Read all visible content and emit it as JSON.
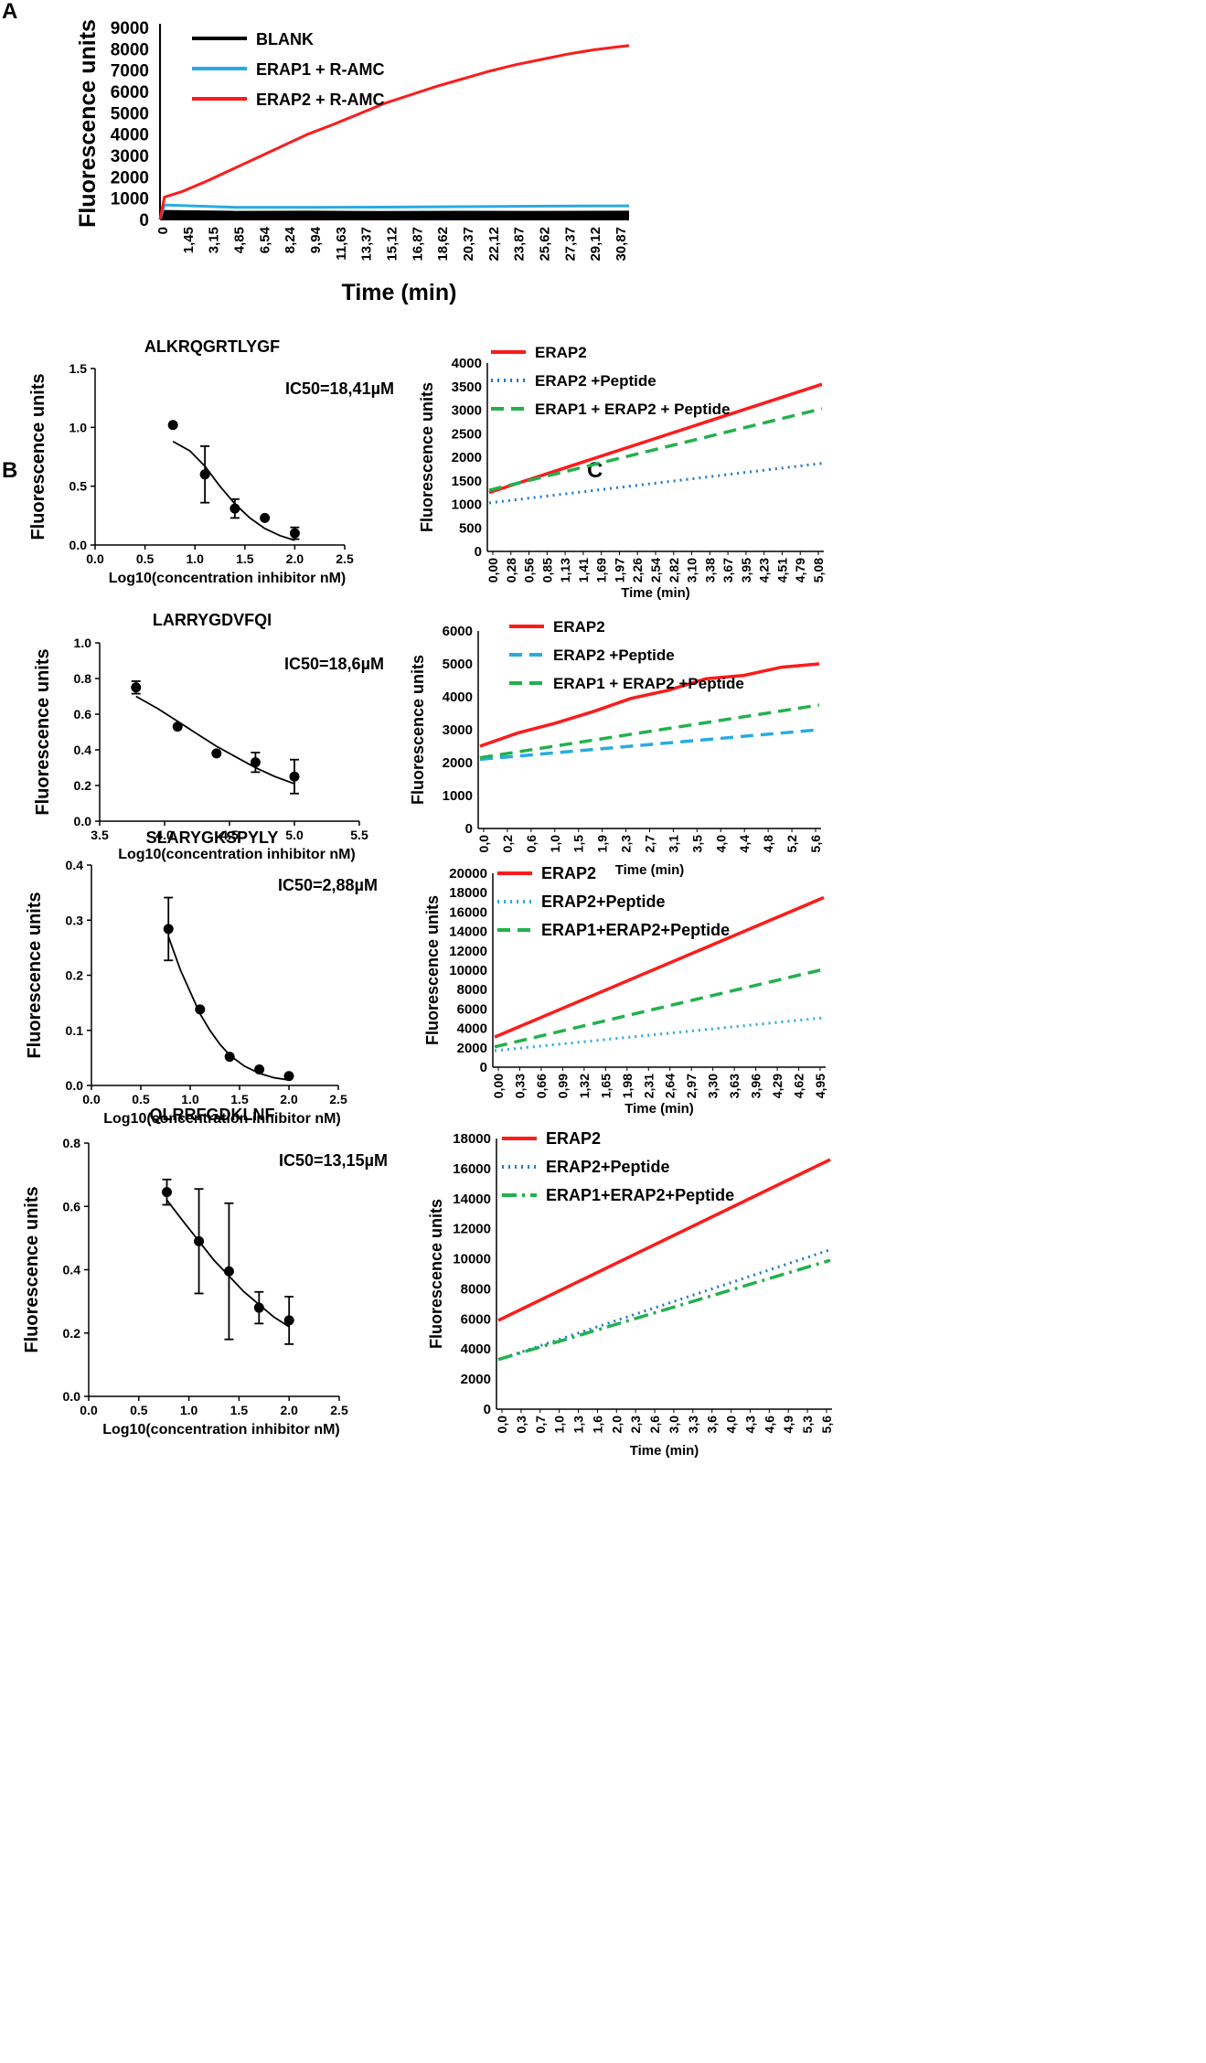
{
  "figure": {
    "panel_labels": [
      "A",
      "B",
      "C"
    ]
  },
  "chart_data": [
    {
      "id": "A",
      "type": "line",
      "title": "",
      "xlabel": "Time (min)",
      "ylabel": "Fluorescence units",
      "ylim": [
        0,
        9000
      ],
      "yticks": [
        "0",
        "1000",
        "2000",
        "3000",
        "4000",
        "5000",
        "6000",
        "7000",
        "8000",
        "9000"
      ],
      "xticks": [
        "0",
        "1,45",
        "3,15",
        "4,85",
        "6,54",
        "8,24",
        "9,94",
        "11,63",
        "13,37",
        "15,12",
        "16,87",
        "18,62",
        "20,37",
        "22,12",
        "23,87",
        "25,62",
        "27,37",
        "29,12",
        "30,87"
      ],
      "xlim": [
        0,
        31.5
      ],
      "legend_position": "top-left",
      "series": [
        {
          "name": "BLANK",
          "color": "#000000",
          "dash": "solid",
          "x": [
            0,
            0.3,
            5,
            10,
            15,
            20,
            25,
            31.5
          ],
          "y": [
            0,
            380,
            340,
            350,
            330,
            345,
            340,
            350
          ]
        },
        {
          "name": "ERAP1 + R-AMC",
          "color": "#29abe2",
          "dash": "solid",
          "x": [
            0,
            0.3,
            5,
            10,
            15,
            20,
            25,
            31.5
          ],
          "y": [
            0,
            680,
            570,
            570,
            580,
            600,
            620,
            640
          ]
        },
        {
          "name": "ERAP2 + R-AMC",
          "color": "#ff1a1a",
          "dash": "solid",
          "x": [
            0,
            0.3,
            1.45,
            3.15,
            4.85,
            6.54,
            8.24,
            9.94,
            11.63,
            13.37,
            15.12,
            16.87,
            18.62,
            20.37,
            22.12,
            23.87,
            25.62,
            27.37,
            29.12,
            30.87,
            31.5
          ],
          "y": [
            0,
            1050,
            1300,
            1800,
            2350,
            2900,
            3450,
            4000,
            4450,
            4950,
            5450,
            5850,
            6250,
            6600,
            6950,
            7250,
            7500,
            7750,
            7950,
            8100,
            8150
          ]
        }
      ]
    },
    {
      "id": "B1",
      "type": "scatter",
      "title": "ALKRQGRTLYGF",
      "annotation": "IC50=18,41µM",
      "xlabel": "Log10(concentration inhibitor nM)",
      "ylabel": "Fluorescence units",
      "xlim": [
        0,
        2.5
      ],
      "ylim": [
        0,
        1.5
      ],
      "xticks": [
        "0.0",
        "0.5",
        "1.0",
        "1.5",
        "2.0",
        "2.5"
      ],
      "yticks": [
        "0.0",
        "0.5",
        "1.0",
        "1.5"
      ],
      "points": [
        {
          "x": 0.78,
          "y": 1.02,
          "err": 0
        },
        {
          "x": 1.1,
          "y": 0.6,
          "err": 0.24
        },
        {
          "x": 1.4,
          "y": 0.31,
          "err": 0.08
        },
        {
          "x": 1.7,
          "y": 0.23,
          "err": 0
        },
        {
          "x": 2.0,
          "y": 0.1,
          "err": 0.05
        }
      ],
      "fit": {
        "x": [
          0.78,
          0.95,
          1.1,
          1.25,
          1.4,
          1.55,
          1.7,
          1.85,
          2.0
        ],
        "y": [
          0.88,
          0.8,
          0.67,
          0.5,
          0.35,
          0.23,
          0.14,
          0.08,
          0.04
        ]
      }
    },
    {
      "id": "B2",
      "type": "scatter",
      "title": "LARRYGDVFQI",
      "annotation": "IC50=18,6µM",
      "xlabel": "Log10(concentration inhibitor nM)",
      "ylabel": "Fluorescence units",
      "xlim": [
        3.5,
        5.5
      ],
      "ylim": [
        0,
        1.0
      ],
      "xticks": [
        "3.5",
        "4.0",
        "4.5",
        "5.0",
        "5.5"
      ],
      "yticks": [
        "0.0",
        "0.2",
        "0.4",
        "0.6",
        "0.8",
        "1.0"
      ],
      "points": [
        {
          "x": 3.78,
          "y": 0.75,
          "err": 0.035
        },
        {
          "x": 4.1,
          "y": 0.53,
          "err": 0
        },
        {
          "x": 4.4,
          "y": 0.38,
          "err": 0
        },
        {
          "x": 4.7,
          "y": 0.33,
          "err": 0.055
        },
        {
          "x": 5.0,
          "y": 0.25,
          "err": 0.095
        }
      ],
      "fit": {
        "x": [
          3.78,
          3.95,
          4.1,
          4.25,
          4.4,
          4.55,
          4.7,
          4.85,
          5.0
        ],
        "y": [
          0.7,
          0.63,
          0.56,
          0.49,
          0.42,
          0.36,
          0.3,
          0.25,
          0.21
        ]
      }
    },
    {
      "id": "B3",
      "type": "scatter",
      "title": "SLARYGKSPYLY",
      "annotation": "IC50=2,88µM",
      "xlabel": "Log10(concentration inhibitor nM)",
      "ylabel": "Fluorescence units",
      "xlim": [
        0,
        2.5
      ],
      "ylim": [
        0,
        0.4
      ],
      "xticks": [
        "0.0",
        "0.5",
        "1.0",
        "1.5",
        "2.0",
        "2.5"
      ],
      "yticks": [
        "0.0",
        "0.1",
        "0.2",
        "0.3",
        "0.4"
      ],
      "points": [
        {
          "x": 0.78,
          "y": 0.284,
          "err": 0.057
        },
        {
          "x": 1.1,
          "y": 0.138,
          "err": 0
        },
        {
          "x": 1.4,
          "y": 0.052,
          "err": 0
        },
        {
          "x": 1.7,
          "y": 0.029,
          "err": 0
        },
        {
          "x": 2.0,
          "y": 0.017,
          "err": 0
        }
      ],
      "fit": {
        "x": [
          0.78,
          0.9,
          1.0,
          1.1,
          1.2,
          1.3,
          1.4,
          1.55,
          1.7,
          1.85,
          2.0
        ],
        "y": [
          0.27,
          0.21,
          0.17,
          0.13,
          0.1,
          0.075,
          0.055,
          0.035,
          0.022,
          0.014,
          0.01
        ]
      }
    },
    {
      "id": "B4",
      "type": "scatter",
      "title": "QLRRFGDKLNF",
      "annotation": "IC50=13,15µM",
      "xlabel": "Log10(concentration inhibitor nM)",
      "ylabel": "Fluorescence units",
      "xlim": [
        0,
        2.5
      ],
      "ylim": [
        0,
        0.8
      ],
      "xticks": [
        "0.0",
        "0.5",
        "1.0",
        "1.5",
        "2.0",
        "2.5"
      ],
      "yticks": [
        "0.0",
        "0.2",
        "0.4",
        "0.6",
        "0.8"
      ],
      "points": [
        {
          "x": 0.78,
          "y": 0.645,
          "err": 0.04
        },
        {
          "x": 1.1,
          "y": 0.49,
          "err": 0.165
        },
        {
          "x": 1.4,
          "y": 0.395,
          "err": 0.215
        },
        {
          "x": 1.7,
          "y": 0.28,
          "err": 0.05
        },
        {
          "x": 2.0,
          "y": 0.24,
          "err": 0.075
        }
      ],
      "fit": {
        "x": [
          0.78,
          0.95,
          1.1,
          1.25,
          1.4,
          1.55,
          1.7,
          1.85,
          2.0
        ],
        "y": [
          0.62,
          0.55,
          0.49,
          0.43,
          0.38,
          0.33,
          0.29,
          0.25,
          0.22
        ]
      }
    },
    {
      "id": "C1",
      "type": "line",
      "xlabel": "Time (min)",
      "ylabel": "Fluorescence units",
      "ylim": [
        0,
        4000
      ],
      "yticks": [
        "0",
        "500",
        "1000",
        "1500",
        "2000",
        "2500",
        "3000",
        "3500",
        "4000"
      ],
      "xticks": [
        "0,00",
        "0,28",
        "0,56",
        "0,85",
        "1,13",
        "1,41",
        "1,69",
        "1,97",
        "2,26",
        "2,54",
        "2,82",
        "3,10",
        "3,38",
        "3,67",
        "3,95",
        "4,23",
        "4,51",
        "4,79",
        "5,08"
      ],
      "series": [
        {
          "name": "ERAP2",
          "color": "#ff1a1a",
          "dash": "solid",
          "y": [
            1250,
            3550
          ]
        },
        {
          "name": "ERAP2 +Peptide",
          "color": "#1f7ac8",
          "dash": "dot",
          "y": [
            1030,
            1870
          ]
        },
        {
          "name": "ERAP1 + ERAP2 + Peptide",
          "color": "#22b14c",
          "dash": "dash",
          "y": [
            1300,
            3030
          ]
        }
      ]
    },
    {
      "id": "C2",
      "type": "line",
      "xlabel": "Time (min)",
      "ylabel": "Fluorescence units",
      "ylim": [
        0,
        6000
      ],
      "yticks": [
        "0",
        "1000",
        "2000",
        "3000",
        "4000",
        "5000",
        "6000"
      ],
      "xticks": [
        "0,0",
        "0,2",
        "0,6",
        "1,0",
        "1,5",
        "1,9",
        "2,3",
        "2,7",
        "3,1",
        "3,5",
        "4,0",
        "4,4",
        "4,8",
        "5,2",
        "5,6"
      ],
      "series": [
        {
          "name": "ERAP2",
          "color": "#ff1a1a",
          "dash": "solid",
          "y": [
            2500,
            2900,
            3200,
            3550,
            3950,
            4200,
            4550,
            4650,
            4900,
            5000
          ]
        },
        {
          "name": "ERAP2 +Peptide",
          "color": "#29abe2",
          "dash": "dash",
          "y": [
            2100,
            3000
          ]
        },
        {
          "name": "ERAP1 + ERAP2 +Peptide",
          "color": "#22b14c",
          "dash": "dash",
          "y": [
            2150,
            3750
          ]
        }
      ]
    },
    {
      "id": "C3",
      "type": "line",
      "xlabel": "Time (min)",
      "ylabel": "Fluorescence units",
      "ylim": [
        0,
        20000
      ],
      "yticks": [
        "0",
        "2000",
        "4000",
        "6000",
        "8000",
        "10000",
        "12000",
        "14000",
        "16000",
        "18000",
        "20000"
      ],
      "xticks": [
        "0,00",
        "0,33",
        "0,66",
        "0,99",
        "1,32",
        "1,65",
        "1,98",
        "2,31",
        "2,64",
        "2,97",
        "3,30",
        "3,63",
        "3,96",
        "4,29",
        "4,62",
        "4,95"
      ],
      "series": [
        {
          "name": "ERAP2",
          "color": "#ff1a1a",
          "dash": "solid",
          "y": [
            3100,
            17500
          ]
        },
        {
          "name": "ERAP2+Peptide",
          "color": "#29abe2",
          "dash": "dot",
          "y": [
            1700,
            5100
          ]
        },
        {
          "name": "ERAP1+ERAP2+Peptide",
          "color": "#22b14c",
          "dash": "dash",
          "y": [
            2100,
            10100
          ]
        }
      ]
    },
    {
      "id": "C4",
      "type": "line",
      "xlabel": "Time (min)",
      "ylabel": "Fluorescence units",
      "ylim": [
        0,
        18000
      ],
      "yticks": [
        "0",
        "2000",
        "4000",
        "6000",
        "8000",
        "10000",
        "12000",
        "14000",
        "16000",
        "18000"
      ],
      "xticks": [
        "0,0",
        "0,3",
        "0,7",
        "1,0",
        "1,3",
        "1,6",
        "2,0",
        "2,3",
        "2,6",
        "3,0",
        "3,3",
        "3,6",
        "4,0",
        "4,3",
        "4,6",
        "4,9",
        "5,3",
        "5,6"
      ],
      "series": [
        {
          "name": "ERAP2",
          "color": "#ff1a1a",
          "dash": "solid",
          "y": [
            5900,
            16600
          ]
        },
        {
          "name": "ERAP2+Peptide",
          "color": "#1f7ac8",
          "dash": "dot",
          "y": [
            3300,
            10600
          ]
        },
        {
          "name": "ERAP1+ERAP2+Peptide",
          "color": "#22b14c",
          "dash": "dashdot",
          "y": [
            3300,
            9900
          ]
        }
      ]
    }
  ]
}
